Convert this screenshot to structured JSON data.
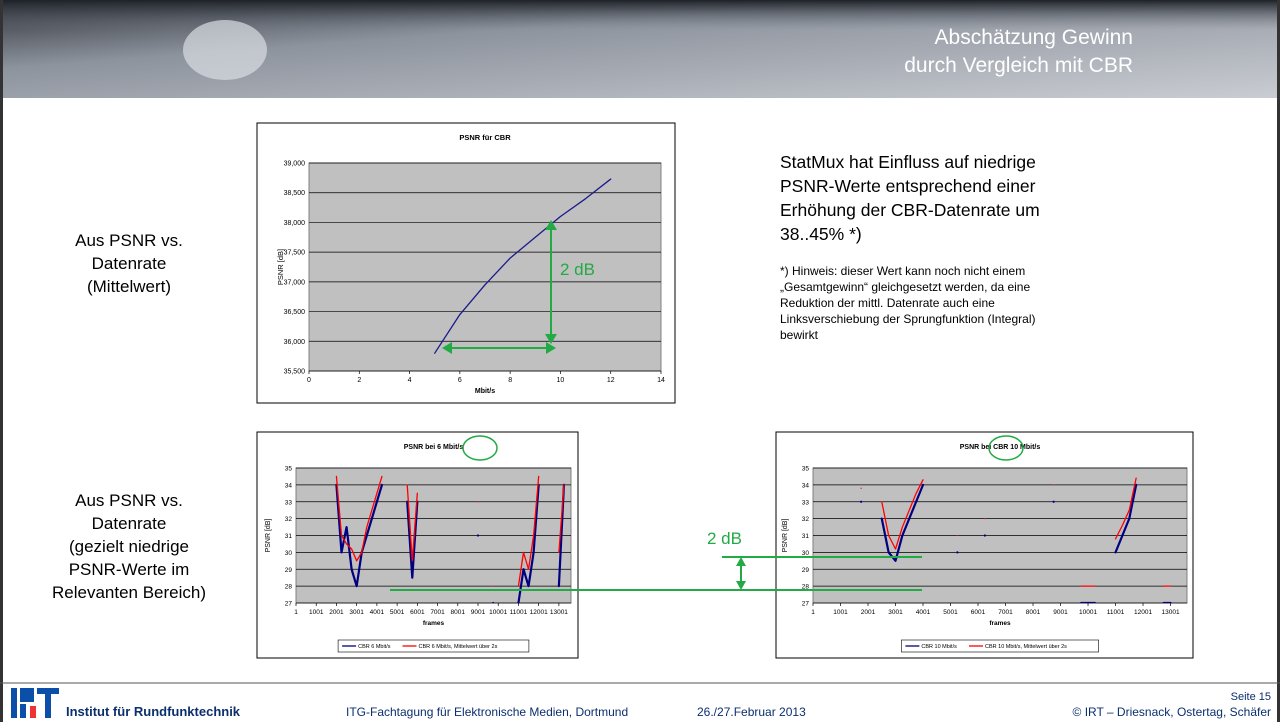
{
  "header": {
    "title_lines": [
      "Abschätzung Gewinn",
      "durch Vergleich mit CBR"
    ]
  },
  "left_labels": [
    [
      "Aus PSNR vs.",
      "Datenrate",
      "(Mittelwert)"
    ],
    [
      "Aus PSNR vs.",
      "Datenrate",
      "(gezielt niedrige",
      "PSNR-Werte im",
      "Relevanten Bereich)"
    ]
  ],
  "right_text": {
    "main_lines": [
      "StatMux hat Einfluss auf niedrige",
      "PSNR-Werte entsprechend einer",
      "Erhöhung der CBR-Datenrate um",
      "38..45% *)"
    ],
    "note_lines": [
      "*) Hinweis: dieser Wert kann noch nicht einem",
      "„Gesamtgewinn“ gleichgesetzt werden, da eine",
      "Reduktion der mittl. Datenrate auch eine",
      "Linksverschiebung der Sprungfunktion (Integral)",
      "bewirkt"
    ]
  },
  "annotation_between": "2 dB",
  "chart_data": [
    {
      "type": "line",
      "title": "PSNR für CBR",
      "x_label": "Mbit/s",
      "y_label": "PSNR [dB]",
      "annotation": "2 dB",
      "x": [
        5,
        6,
        7,
        8,
        9,
        10,
        11,
        12
      ],
      "series": [
        {
          "color": "#1a1a8c",
          "values": [
            35800,
            36450,
            36950,
            37400,
            37750,
            38100,
            38400,
            38730
          ]
        }
      ],
      "xlim": [
        0,
        14
      ],
      "xticks": [
        0,
        2,
        4,
        6,
        8,
        10,
        12,
        14
      ],
      "ylim": [
        35500,
        39000
      ],
      "yticks": [
        {
          "value": 35500,
          "label": "35,500"
        },
        {
          "value": 36000,
          "label": "36,000"
        },
        {
          "value": 36500,
          "label": "36,500"
        },
        {
          "value": 37000,
          "label": "37,000"
        },
        {
          "value": 37500,
          "label": "37,500"
        },
        {
          "value": 38000,
          "label": "38,000"
        },
        {
          "value": 38500,
          "label": "38,500"
        },
        {
          "value": 39000,
          "label": "39,000"
        }
      ],
      "grid": true
    },
    {
      "type": "line",
      "title": "PSNR bei 6 Mbit/s",
      "x_label": "frames",
      "y_label": "PSNR [dB]",
      "x": [
        1,
        251,
        501,
        751,
        1001,
        1251,
        1501,
        1751,
        2001,
        2251,
        2501,
        2751,
        3001,
        3251,
        3501,
        3751,
        4001,
        4251,
        4501,
        4751,
        5001,
        5251,
        5501,
        5751,
        6001,
        6251,
        6501,
        6751,
        7001,
        7251,
        7501,
        7751,
        8001,
        8251,
        8501,
        8751,
        9001,
        9251,
        9501,
        9751,
        10001,
        10251,
        10501,
        10751,
        11001,
        11251,
        11501,
        11751,
        12001,
        12251,
        12501,
        12751,
        13001,
        13251,
        13501
      ],
      "series": [
        {
          "name": "CBR 6 Mbit/s",
          "color": "#000080",
          "values": [
            null,
            null,
            null,
            null,
            null,
            null,
            null,
            null,
            34,
            30,
            31.5,
            29,
            28,
            30,
            31,
            32,
            33,
            34,
            null,
            null,
            null,
            null,
            33,
            28.5,
            33,
            null,
            null,
            null,
            null,
            null,
            null,
            null,
            null,
            null,
            null,
            null,
            31,
            null,
            null,
            27,
            null,
            null,
            null,
            null,
            27,
            29,
            28,
            30,
            34,
            null,
            null,
            null,
            28,
            34,
            null
          ]
        },
        {
          "name": "CBR 6 Mbit/s, Mittelwert über 2s",
          "color": "#ff0000",
          "values": [
            null,
            null,
            null,
            null,
            null,
            null,
            null,
            null,
            34.5,
            31,
            30.5,
            30.2,
            29.5,
            30,
            31.5,
            32.5,
            33.5,
            34.5,
            null,
            null,
            null,
            null,
            34,
            29.5,
            33.5,
            null,
            null,
            null,
            null,
            null,
            null,
            null,
            null,
            null,
            null,
            null,
            33,
            null,
            null,
            28,
            null,
            null,
            null,
            null,
            28,
            30,
            29,
            31,
            34.5,
            null,
            null,
            null,
            30,
            34,
            null
          ]
        }
      ],
      "xlim": [
        1,
        13600
      ],
      "xticks": [
        1,
        1001,
        2001,
        3001,
        4001,
        5001,
        6001,
        7001,
        8001,
        9001,
        10001,
        11001,
        12001,
        13001
      ],
      "ylim": [
        27,
        35
      ],
      "yticks": [
        27,
        28,
        29,
        30,
        31,
        32,
        33,
        34,
        35
      ],
      "grid": true
    },
    {
      "type": "line",
      "title": "PSNR bei CBR 10 Mbit/s",
      "x_label": "frames",
      "y_label": "PSNR [dB]",
      "x": [
        1,
        251,
        501,
        751,
        1001,
        1251,
        1501,
        1751,
        2001,
        2251,
        2501,
        2751,
        3001,
        3251,
        3501,
        3751,
        4001,
        4251,
        4501,
        4751,
        5001,
        5251,
        5501,
        5751,
        6001,
        6251,
        6501,
        6751,
        7001,
        7251,
        7501,
        7751,
        8001,
        8251,
        8501,
        8751,
        9001,
        9251,
        9501,
        9751,
        10001,
        10251,
        10501,
        10751,
        11001,
        11251,
        11501,
        11751,
        12001,
        12251,
        12501,
        12751,
        13001,
        13251,
        13501
      ],
      "series": [
        {
          "name": "CBR 10 Mbit/s",
          "color": "#000080",
          "values": [
            null,
            null,
            null,
            null,
            null,
            null,
            null,
            33,
            null,
            null,
            32,
            30,
            29.5,
            31,
            32,
            33,
            34,
            null,
            null,
            null,
            null,
            30,
            null,
            null,
            null,
            31,
            null,
            null,
            null,
            null,
            null,
            null,
            null,
            null,
            null,
            33,
            null,
            null,
            null,
            27,
            27,
            27,
            null,
            null,
            30,
            31,
            32,
            34,
            null,
            null,
            null,
            27,
            27,
            null,
            null
          ]
        },
        {
          "name": "CBR 10 Mbit/s, Mittelwert über 2s",
          "color": "#ff0000",
          "values": [
            null,
            null,
            null,
            null,
            null,
            null,
            null,
            33.8,
            null,
            null,
            33,
            31,
            30.2,
            31.5,
            32.5,
            33.5,
            34.3,
            null,
            null,
            null,
            null,
            31,
            null,
            null,
            null,
            32,
            null,
            null,
            null,
            null,
            null,
            null,
            null,
            null,
            null,
            34,
            null,
            null,
            null,
            28,
            28,
            28,
            null,
            null,
            30.8,
            31.6,
            32.5,
            34.4,
            null,
            null,
            null,
            28,
            28,
            null,
            null
          ]
        }
      ],
      "xlim": [
        1,
        13600
      ],
      "xticks": [
        1,
        1001,
        2001,
        3001,
        4001,
        5001,
        6001,
        7001,
        8001,
        9001,
        10001,
        11001,
        12001,
        13001
      ],
      "ylim": [
        27,
        35
      ],
      "yticks": [
        27,
        28,
        29,
        30,
        31,
        32,
        33,
        34,
        35
      ],
      "grid": true
    }
  ],
  "footer": {
    "organisation": "Institut für Rundfunktechnik",
    "event": "ITG-Fachtagung für Elektronische Medien, Dortmund",
    "date": "26./27.Februar 2013",
    "page": "Seite 15",
    "copyright": "© IRT – Driesnack, Ostertag, Schäfer"
  }
}
